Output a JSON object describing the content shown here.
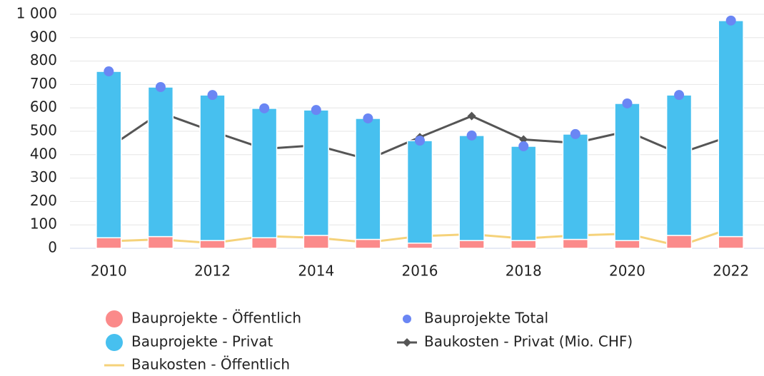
{
  "chart_data": {
    "type": "bar",
    "stacked": true,
    "x": [
      2010,
      2011,
      2012,
      2013,
      2014,
      2015,
      2016,
      2017,
      2018,
      2019,
      2020,
      2021,
      2022
    ],
    "xlim": [
      2009.5,
      2022.5
    ],
    "xticks": [
      2010,
      2012,
      2014,
      2016,
      2018,
      2020,
      2022
    ],
    "ylim": [
      0,
      1000
    ],
    "yticks": [
      0,
      100,
      200,
      300,
      400,
      500,
      600,
      700,
      800,
      900,
      {
        "value": 1000,
        "label": "1 000"
      }
    ],
    "grid": true,
    "series": [
      {
        "name": "Bauprojekte - Öffentlich",
        "type": "bar",
        "color": "#fb8a8a",
        "values": [
          45,
          50,
          33,
          45,
          55,
          38,
          22,
          33,
          33,
          38,
          33,
          55,
          50
        ]
      },
      {
        "name": "Bauprojekte - Privat",
        "type": "bar",
        "color": "#47c0ef",
        "values": [
          711,
          639,
          622,
          553,
          536,
          517,
          438,
          449,
          403,
          450,
          586,
          600,
          923
        ]
      },
      {
        "name": "Bauprojekte Total",
        "type": "scatter",
        "color": "#6a86f4",
        "values": [
          756,
          689,
          655,
          598,
          591,
          555,
          460,
          482,
          436,
          488,
          619,
          655,
          973
        ]
      },
      {
        "name": "Baukosten - Öffentlich",
        "type": "line",
        "color": "#f5d27a",
        "values": [
          30,
          38,
          22,
          52,
          45,
          25,
          52,
          60,
          42,
          55,
          62,
          10,
          85
        ]
      },
      {
        "name": "Baukosten - Privat (Mio. CHF)",
        "type": "line",
        "marker": "diamond",
        "color": "#555555",
        "values": [
          430,
          580,
          500,
          425,
          440,
          380,
          475,
          565,
          465,
          450,
          500,
          405,
          480
        ]
      }
    ]
  }
}
